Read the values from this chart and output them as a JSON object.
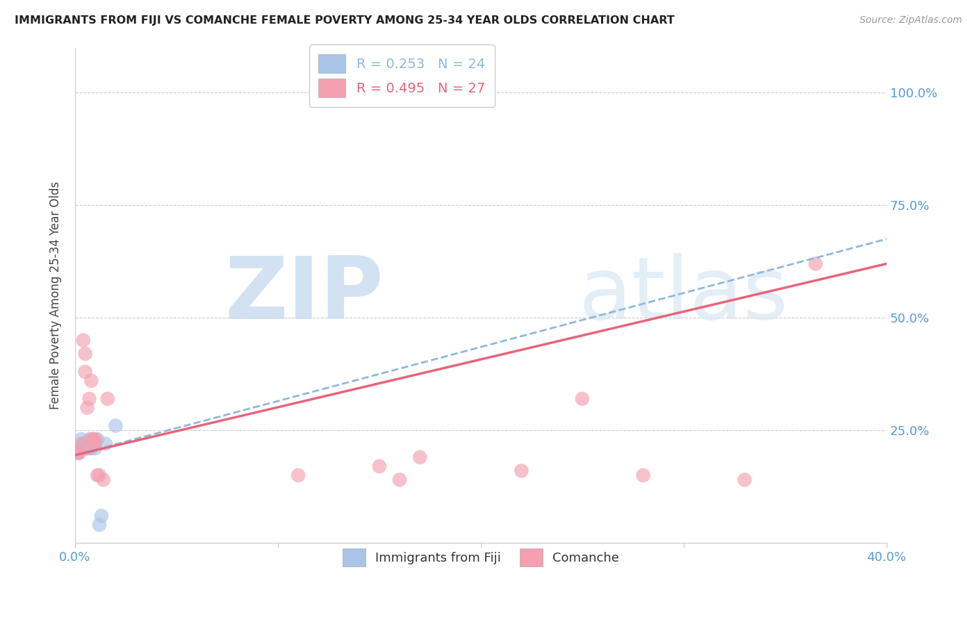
{
  "title": "IMMIGRANTS FROM FIJI VS COMANCHE FEMALE POVERTY AMONG 25-34 YEAR OLDS CORRELATION CHART",
  "source": "Source: ZipAtlas.com",
  "ylabel": "Female Poverty Among 25-34 Year Olds",
  "xlim": [
    0.0,
    0.4
  ],
  "ylim": [
    0.0,
    1.1
  ],
  "x_tick_positions": [
    0.0,
    0.1,
    0.2,
    0.3,
    0.4
  ],
  "x_tick_labels": [
    "0.0%",
    "",
    "",
    "",
    "40.0%"
  ],
  "y_tick_positions": [
    0.0,
    0.25,
    0.5,
    0.75,
    1.0
  ],
  "y_tick_labels": [
    "",
    "25.0%",
    "50.0%",
    "75.0%",
    "100.0%"
  ],
  "legend_r1": "R = 0.253",
  "legend_n1": "N = 24",
  "legend_r2": "R = 0.495",
  "legend_n2": "N = 27",
  "fiji_color": "#aac4e8",
  "comanche_color": "#f4a0b0",
  "fiji_line_color": "#90b8dd",
  "comanche_line_color": "#e8647a",
  "axis_label_color": "#5599dd",
  "watermark": "ZIPatlas",
  "fiji_line_x0": 0.0,
  "fiji_line_y0": 0.195,
  "fiji_line_x1": 0.4,
  "fiji_line_y1": 0.675,
  "comanche_line_x0": 0.0,
  "comanche_line_y0": 0.195,
  "comanche_line_x1": 0.4,
  "comanche_line_y1": 0.62,
  "fiji_x": [
    0.001,
    0.002,
    0.003,
    0.003,
    0.004,
    0.004,
    0.005,
    0.005,
    0.006,
    0.006,
    0.007,
    0.007,
    0.007,
    0.008,
    0.008,
    0.009,
    0.009,
    0.01,
    0.01,
    0.011,
    0.012,
    0.013,
    0.015,
    0.02
  ],
  "fiji_y": [
    0.2,
    0.2,
    0.23,
    0.21,
    0.22,
    0.22,
    0.22,
    0.21,
    0.22,
    0.21,
    0.23,
    0.22,
    0.21,
    0.22,
    0.21,
    0.22,
    0.23,
    0.22,
    0.21,
    0.23,
    0.04,
    0.06,
    0.22,
    0.26
  ],
  "comanche_x": [
    0.001,
    0.002,
    0.003,
    0.004,
    0.005,
    0.005,
    0.006,
    0.006,
    0.007,
    0.008,
    0.008,
    0.009,
    0.01,
    0.01,
    0.011,
    0.012,
    0.014,
    0.016,
    0.11,
    0.15,
    0.16,
    0.17,
    0.22,
    0.25,
    0.28,
    0.33,
    0.365
  ],
  "comanche_y": [
    0.2,
    0.2,
    0.22,
    0.45,
    0.38,
    0.42,
    0.21,
    0.3,
    0.32,
    0.23,
    0.36,
    0.23,
    0.22,
    0.23,
    0.15,
    0.15,
    0.14,
    0.32,
    0.15,
    0.17,
    0.14,
    0.19,
    0.16,
    0.32,
    0.15,
    0.14,
    0.62
  ]
}
